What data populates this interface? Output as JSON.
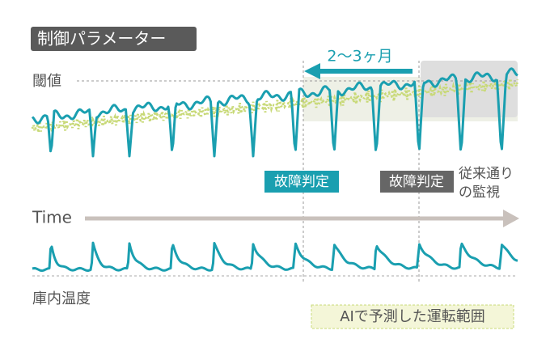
{
  "labels": {
    "parameter_title": "制御パラメーター",
    "threshold": "閾値",
    "lead_time": "2～3ヶ月",
    "fault_ai": "故障判定",
    "fault_conventional": "故障判定",
    "conventional_line1": "従来通り",
    "conventional_line2": "の監視",
    "time": "Time",
    "temperature": "庫内温度",
    "ai_range": "AIで予測した運転範囲"
  }
}
